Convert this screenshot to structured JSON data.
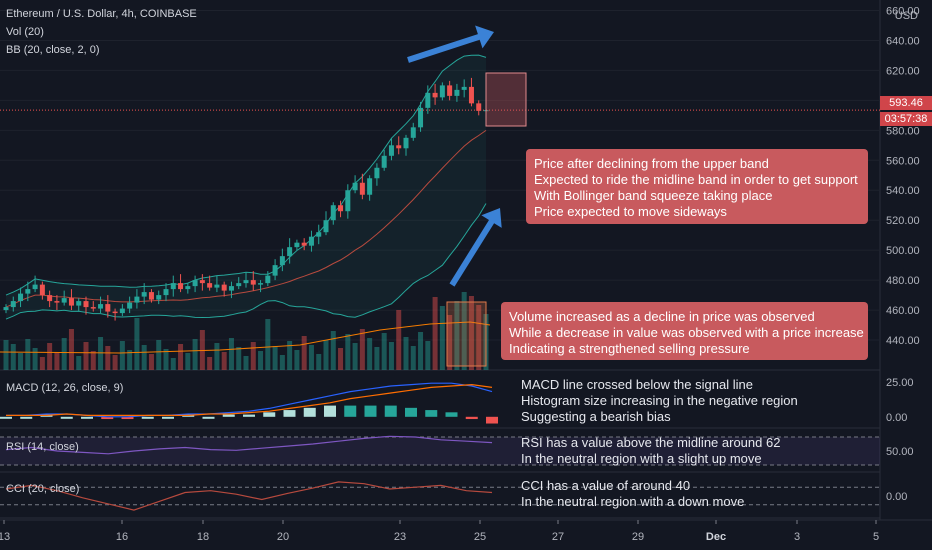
{
  "header": {
    "symbol_line": "Ethereum / U.S. Dollar, 4h, COINBASE",
    "vol_label": "Vol (20)",
    "bb_label": "BB (20, close, 2, 0)"
  },
  "price_axis": {
    "currency": "USD",
    "current_price": "593.46",
    "countdown": "03:57:38"
  },
  "chart_data": [
    {
      "type": "candlestick",
      "title": "Ethereum / U.S. Dollar, 4h, COINBASE",
      "ylim": [
        420,
        665
      ],
      "y_ticks": [
        440,
        460,
        480,
        500,
        520,
        540,
        560,
        580,
        600,
        620,
        640,
        660
      ],
      "y_tick_labels": [
        "440.00",
        "460.00",
        "480.00",
        "500.00",
        "520.00",
        "540.00",
        "560.00",
        "580.00",
        "600.00",
        "620.00",
        "640.00",
        "660.00"
      ],
      "x_tick_labels": [
        "13",
        "16",
        "18",
        "20",
        "23",
        "25",
        "27",
        "29",
        "Dec",
        "3",
        "5"
      ],
      "close_prices": [
        462,
        466,
        471,
        474,
        477,
        470,
        466,
        465,
        468,
        463,
        466,
        462,
        461,
        464,
        459,
        458,
        461,
        465,
        469,
        472,
        467,
        470,
        474,
        478,
        474,
        476,
        480,
        478,
        475,
        477,
        473,
        476,
        478,
        480,
        477,
        478,
        483,
        490,
        496,
        502,
        505,
        503,
        509,
        512,
        520,
        530,
        526,
        540,
        545,
        537,
        548,
        555,
        563,
        570,
        568,
        575,
        582,
        595,
        605,
        602,
        610,
        603,
        607,
        609,
        598,
        593,
        593.46
      ],
      "bollinger": {
        "upper_end": 620,
        "middle_end": 575,
        "lower_end": 530
      },
      "volume_note": "Volume (20) bars shown at bottom of price pane"
    },
    {
      "type": "line",
      "title": "MACD (12, 26, close, 9)",
      "y_tick_labels": [
        "25.00",
        "0.00"
      ],
      "ylim": [
        -8,
        32
      ],
      "series": [
        {
          "name": "MACD",
          "values": [
            1,
            1,
            2,
            2,
            1,
            0,
            0,
            1,
            1,
            2,
            2,
            3,
            4,
            6,
            9,
            12,
            15,
            18,
            20,
            22,
            23,
            24,
            24,
            22,
            18
          ]
        },
        {
          "name": "Signal",
          "values": [
            1,
            1,
            1,
            2,
            1,
            1,
            1,
            1,
            1,
            1,
            2,
            2,
            3,
            4,
            6,
            8,
            10,
            13,
            15,
            17,
            19,
            21,
            22,
            23,
            21
          ]
        }
      ]
    },
    {
      "type": "line",
      "title": "RSI (14, close)",
      "y_tick_labels": [
        "50.00"
      ],
      "ylim": [
        20,
        80
      ],
      "series": [
        {
          "name": "RSI",
          "values": [
            52,
            55,
            50,
            48,
            46,
            50,
            53,
            55,
            52,
            51,
            54,
            57,
            60,
            64,
            68,
            71,
            70,
            66,
            64,
            62
          ]
        }
      ]
    },
    {
      "type": "line",
      "title": "CCI (20, close)",
      "y_tick_labels": [
        "0.00"
      ],
      "ylim": [
        -250,
        250
      ],
      "series": [
        {
          "name": "CCI",
          "values": [
            80,
            120,
            60,
            -20,
            -90,
            -160,
            -60,
            40,
            60,
            20,
            -40,
            30,
            90,
            160,
            140,
            80,
            100,
            120,
            60,
            40
          ]
        }
      ]
    }
  ],
  "annotations": {
    "price_box": [
      "Price after declining from the upper band",
      "Expected to ride the midline band in order to get support",
      "With Bollinger band squeeze taking place",
      "Price expected to move sideways"
    ],
    "volume_box": [
      "Volume increased as a decline in price was observed",
      "While a decrease in value was observed with a price increase",
      "Indicating a strengthened selling pressure"
    ],
    "macd_note": [
      "MACD line crossed below the signal line",
      "Histogram size increasing in the negative region",
      "Suggesting a bearish bias"
    ],
    "rsi_note": [
      "RSI has a value above the midline around 62",
      "In the neutral region with a slight up move"
    ],
    "cci_note": [
      "CCI has a value of around 40",
      "In the neutral region with a down move"
    ]
  },
  "colors": {
    "background": "#131722",
    "up": "#26a69a",
    "down": "#ef5350",
    "bb_band": "#26a69a",
    "bb_mid": "#b74a3e",
    "macd": "#2962ff",
    "signal": "#ff6d00",
    "rsi": "#7e57c2",
    "cci": "#b74a3e",
    "arrow": "#3b82d6",
    "annotation": "#c85a5e"
  }
}
